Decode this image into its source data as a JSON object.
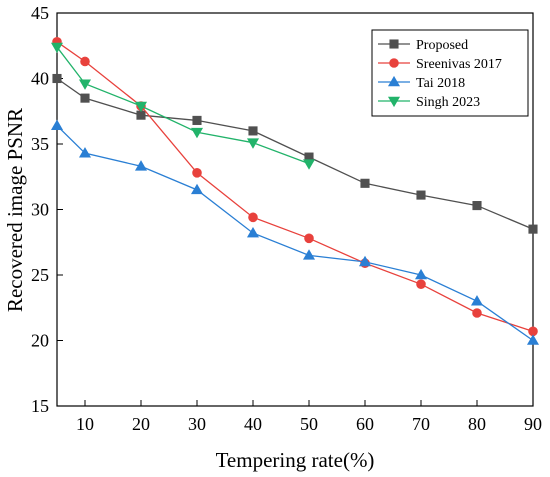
{
  "chart_data": {
    "type": "line",
    "title": "",
    "xlabel": "Tempering rate(%)",
    "ylabel": "Recovered image PSNR",
    "xlim": [
      5,
      90
    ],
    "ylim": [
      15,
      45
    ],
    "xticks": [
      10,
      20,
      30,
      40,
      50,
      60,
      70,
      80,
      90
    ],
    "yticks": [
      15,
      20,
      25,
      30,
      35,
      40,
      45
    ],
    "grid": false,
    "legend_position": "top-right",
    "series": [
      {
        "name": "Proposed",
        "color": "#505050",
        "marker": "square",
        "x": [
          5,
          10,
          20,
          30,
          40,
          50,
          60,
          70,
          80,
          90
        ],
        "y": [
          40.0,
          38.5,
          37.2,
          36.8,
          36.0,
          34.0,
          32.0,
          31.1,
          30.3,
          28.5
        ]
      },
      {
        "name": "Sreenivas 2017",
        "color": "#e8413c",
        "marker": "circle",
        "x": [
          5,
          10,
          20,
          30,
          40,
          50,
          60,
          70,
          80,
          90
        ],
        "y": [
          42.8,
          41.3,
          37.9,
          32.8,
          29.4,
          27.8,
          25.9,
          24.3,
          22.1,
          20.7
        ]
      },
      {
        "name": "Tai 2018",
        "color": "#2a7fd4",
        "marker": "triangle-up",
        "x": [
          5,
          10,
          20,
          30,
          40,
          50,
          60,
          70,
          80,
          90
        ],
        "y": [
          36.4,
          34.3,
          33.3,
          31.5,
          28.2,
          26.5,
          26.0,
          25.0,
          23.0,
          20.0
        ]
      },
      {
        "name": "Singh 2023",
        "color": "#22b36a",
        "marker": "triangle-down",
        "x": [
          5,
          10,
          20,
          30,
          40,
          50
        ],
        "y": [
          42.4,
          39.6,
          37.9,
          35.9,
          35.1,
          33.5
        ]
      }
    ]
  }
}
